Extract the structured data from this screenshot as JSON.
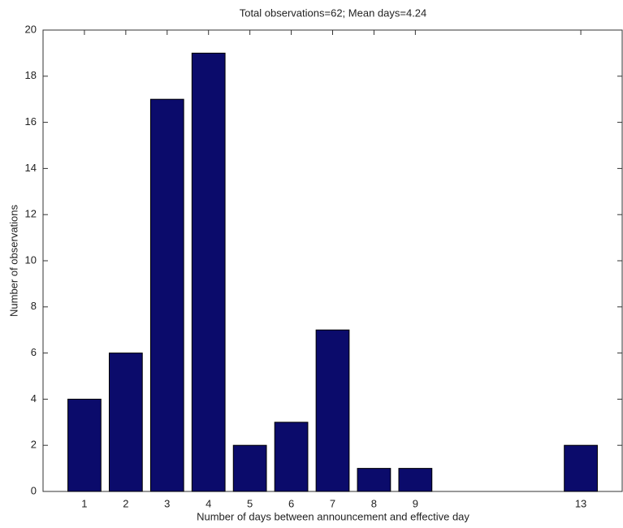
{
  "chart_data": {
    "type": "bar",
    "title": "Total observations=62; Mean days=4.24",
    "x_label": "Number of days between announcement and effective day",
    "y_label": "Number of observations",
    "x": [
      1,
      2,
      3,
      4,
      5,
      6,
      7,
      8,
      9,
      13
    ],
    "values": [
      4,
      6,
      17,
      19,
      2,
      3,
      7,
      1,
      1,
      2
    ],
    "color": "#0b0b6b",
    "xlim": [
      0,
      14
    ],
    "xticks": [
      1,
      2,
      3,
      4,
      5,
      6,
      7,
      8,
      9,
      13
    ],
    "ylim": [
      0,
      20
    ],
    "yticks": [
      0,
      2,
      4,
      6,
      8,
      10,
      12,
      14,
      16,
      18,
      20
    ]
  }
}
